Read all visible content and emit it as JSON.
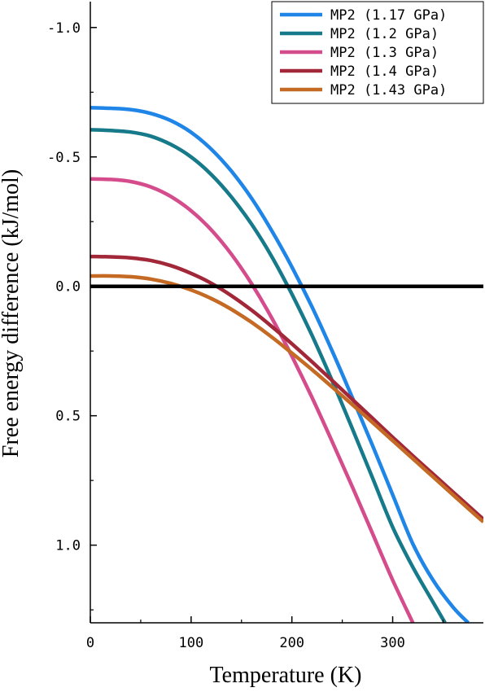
{
  "chart_data": {
    "type": "line",
    "title": "",
    "xlabel": "Temperature (K)",
    "ylabel": "Free energy difference (kJ/mol)",
    "xlim": [
      0,
      390
    ],
    "ylim": [
      -1.1,
      1.3
    ],
    "y_reversed": true,
    "x_ticks": [
      0,
      100,
      200,
      300
    ],
    "x_tick_labels": [
      "0",
      "100",
      "200",
      "300"
    ],
    "y_ticks": [
      -1.0,
      -0.5,
      0.0,
      0.5,
      1.0
    ],
    "y_tick_labels": [
      "-1.0",
      "-0.5",
      "0.0",
      "0.5",
      "1.0"
    ],
    "grid": false,
    "legend_position": "top-right",
    "reference_line": {
      "y": 0.0,
      "color": "#000000"
    },
    "series": [
      {
        "name": "MP2 (1.17 GPa)",
        "color": "#1f86e8",
        "x": [
          0,
          20,
          40,
          60,
          80,
          100,
          120,
          140,
          160,
          180,
          200,
          220,
          240,
          260,
          280,
          300,
          320,
          340,
          360,
          375
        ],
        "y": [
          -0.69,
          -0.688,
          -0.683,
          -0.668,
          -0.64,
          -0.595,
          -0.53,
          -0.445,
          -0.34,
          -0.215,
          -0.075,
          0.08,
          0.25,
          0.43,
          0.615,
          0.805,
          0.995,
          1.135,
          1.24,
          1.3
        ]
      },
      {
        "name": "MP2 (1.2 GPa)",
        "color": "#167a8a",
        "x": [
          0,
          20,
          40,
          60,
          80,
          100,
          120,
          140,
          160,
          180,
          200,
          220,
          240,
          260,
          280,
          300,
          320,
          340,
          352
        ],
        "y": [
          -0.605,
          -0.602,
          -0.596,
          -0.58,
          -0.548,
          -0.5,
          -0.432,
          -0.345,
          -0.24,
          -0.115,
          0.03,
          0.19,
          0.365,
          0.55,
          0.74,
          0.93,
          1.085,
          1.22,
          1.3
        ]
      },
      {
        "name": "MP2 (1.3 GPa)",
        "color": "#d44c8c",
        "x": [
          0,
          20,
          40,
          60,
          80,
          100,
          120,
          140,
          160,
          180,
          200,
          220,
          240,
          260,
          280,
          300,
          320
        ],
        "y": [
          -0.415,
          -0.413,
          -0.405,
          -0.384,
          -0.347,
          -0.292,
          -0.218,
          -0.124,
          -0.01,
          0.122,
          0.27,
          0.43,
          0.6,
          0.775,
          0.955,
          1.135,
          1.3
        ]
      },
      {
        "name": "MP2 (1.4 GPa)",
        "color": "#a12739",
        "x": [
          0,
          20,
          40,
          60,
          80,
          100,
          120,
          140,
          160,
          180,
          200,
          220,
          240,
          260,
          280,
          300,
          320,
          340,
          360,
          380,
          390
        ],
        "y": [
          -0.115,
          -0.114,
          -0.11,
          -0.1,
          -0.08,
          -0.05,
          -0.012,
          0.036,
          0.092,
          0.155,
          0.222,
          0.292,
          0.364,
          0.437,
          0.51,
          0.583,
          0.655,
          0.725,
          0.795,
          0.865,
          0.9
        ]
      },
      {
        "name": "MP2 (1.43 GPa)",
        "color": "#c46a24",
        "x": [
          0,
          20,
          40,
          60,
          80,
          100,
          120,
          140,
          160,
          180,
          200,
          220,
          240,
          260,
          280,
          300,
          320,
          340,
          360,
          380,
          390
        ],
        "y": [
          -0.04,
          -0.04,
          -0.037,
          -0.028,
          -0.011,
          0.014,
          0.047,
          0.089,
          0.139,
          0.196,
          0.258,
          0.322,
          0.389,
          0.457,
          0.526,
          0.596,
          0.666,
          0.736,
          0.806,
          0.876,
          0.91
        ]
      }
    ]
  }
}
